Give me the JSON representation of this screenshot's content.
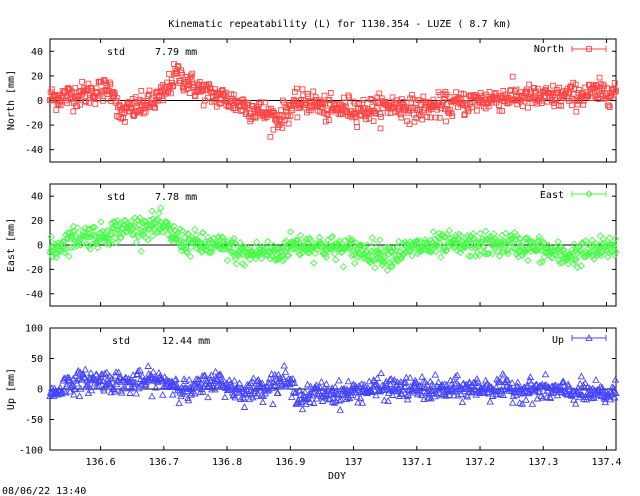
{
  "chart_data": {
    "type": "scatter",
    "title": "Kinematic repeatability (L) for 1130.354 - LUZE  (  8.7 km)",
    "xlabel": "DOY",
    "xlim": [
      136.52,
      137.415
    ],
    "x_ticks": [
      136.6,
      136.7,
      136.8,
      136.9,
      137,
      137.1,
      137.2,
      137.3,
      137.4
    ],
    "x_tick_labels": [
      "136.6",
      "136.7",
      "136.8",
      "136.9",
      "137",
      "137.1",
      "137.2",
      "137.3",
      "137.4"
    ],
    "footer": "08/06/22 13:40",
    "panels": [
      {
        "name": "North",
        "ylabel": "North [mm]",
        "ylim": [
          -50,
          50
        ],
        "y_ticks": [
          40,
          20,
          0,
          -20,
          -40
        ],
        "std_label": "std",
        "std_value": "7.79 mm",
        "legend": "North",
        "color": "#ff4444",
        "marker": "square",
        "trend": [
          [
            136.52,
            2
          ],
          [
            136.57,
            5
          ],
          [
            136.6,
            8
          ],
          [
            136.62,
            10
          ],
          [
            136.63,
            -12
          ],
          [
            136.65,
            -7
          ],
          [
            136.68,
            -2
          ],
          [
            136.7,
            5
          ],
          [
            136.72,
            22
          ],
          [
            136.74,
            14
          ],
          [
            136.76,
            8
          ],
          [
            136.78,
            4
          ],
          [
            136.8,
            1
          ],
          [
            136.83,
            -5
          ],
          [
            136.86,
            -10
          ],
          [
            136.88,
            -15
          ],
          [
            136.9,
            -6
          ],
          [
            136.93,
            0
          ],
          [
            136.96,
            -8
          ],
          [
            136.99,
            -6
          ],
          [
            137.02,
            -8
          ],
          [
            137.06,
            -4
          ],
          [
            137.1,
            -7
          ],
          [
            137.15,
            -4
          ],
          [
            137.2,
            0
          ],
          [
            137.25,
            3
          ],
          [
            137.3,
            2
          ],
          [
            137.35,
            4
          ],
          [
            137.4,
            7
          ],
          [
            137.415,
            8
          ]
        ],
        "noise": 5
      },
      {
        "name": "East",
        "ylabel": "East [mm]",
        "ylim": [
          -50,
          50
        ],
        "y_ticks": [
          40,
          20,
          0,
          -20,
          -40
        ],
        "std_label": "std",
        "std_value": "7.78 mm",
        "legend": "East",
        "color": "#44ff44",
        "marker": "diamond",
        "trend": [
          [
            136.52,
            -6
          ],
          [
            136.55,
            5
          ],
          [
            136.58,
            8
          ],
          [
            136.6,
            7
          ],
          [
            136.62,
            12
          ],
          [
            136.65,
            14
          ],
          [
            136.68,
            16
          ],
          [
            136.7,
            14
          ],
          [
            136.71,
            10
          ],
          [
            136.73,
            3
          ],
          [
            136.76,
            0
          ],
          [
            136.8,
            -2
          ],
          [
            136.83,
            -8
          ],
          [
            136.86,
            -5
          ],
          [
            136.88,
            -8
          ],
          [
            136.9,
            0
          ],
          [
            136.93,
            0
          ],
          [
            136.96,
            -2
          ],
          [
            137,
            -4
          ],
          [
            137.03,
            -6
          ],
          [
            137.06,
            -8
          ],
          [
            137.1,
            -2
          ],
          [
            137.15,
            0
          ],
          [
            137.2,
            0
          ],
          [
            137.25,
            1
          ],
          [
            137.3,
            -4
          ],
          [
            137.33,
            -9
          ],
          [
            137.37,
            -6
          ],
          [
            137.4,
            -3
          ],
          [
            137.415,
            0
          ]
        ],
        "noise": 5
      },
      {
        "name": "Up",
        "ylabel": "Up [mm]",
        "ylim": [
          -100,
          100
        ],
        "y_ticks": [
          100,
          50,
          0,
          -50,
          -100
        ],
        "std_label": "std",
        "std_value": "12.44 mm",
        "legend": "Up",
        "color": "#4444ff",
        "marker": "triangle",
        "trend": [
          [
            136.52,
            -10
          ],
          [
            136.55,
            10
          ],
          [
            136.6,
            15
          ],
          [
            136.63,
            12
          ],
          [
            136.65,
            8
          ],
          [
            136.68,
            15
          ],
          [
            136.72,
            8
          ],
          [
            136.74,
            -5
          ],
          [
            136.76,
            5
          ],
          [
            136.78,
            15
          ],
          [
            136.8,
            5
          ],
          [
            136.83,
            -5
          ],
          [
            136.86,
            5
          ],
          [
            136.89,
            15
          ],
          [
            136.92,
            -15
          ],
          [
            136.95,
            -5
          ],
          [
            136.98,
            -8
          ],
          [
            137.02,
            0
          ],
          [
            137.06,
            2
          ],
          [
            137.1,
            0
          ],
          [
            137.15,
            -2
          ],
          [
            137.2,
            2
          ],
          [
            137.25,
            0
          ],
          [
            137.3,
            -2
          ],
          [
            137.35,
            -5
          ],
          [
            137.4,
            -10
          ],
          [
            137.415,
            -5
          ]
        ],
        "noise": 9
      }
    ]
  }
}
